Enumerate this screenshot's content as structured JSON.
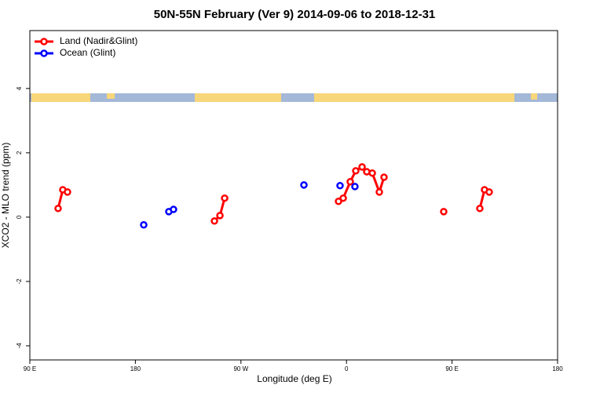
{
  "chart_data": {
    "type": "line",
    "title": "50N-55N February (Ver 9)   2014-09-06 to 2018-12-31",
    "x_label": "Longitude (deg E)",
    "y_label": "XCO2 - MLO trend (ppm)",
    "xlim": [
      90,
      540
    ],
    "ylim": [
      -4.44,
      5.8
    ],
    "xticks": [
      {
        "value": 90,
        "label": "90 E"
      },
      {
        "value": 180,
        "label": "180"
      },
      {
        "value": 270,
        "label": "90 W"
      },
      {
        "value": 360,
        "label": "0"
      },
      {
        "value": 450,
        "label": "90 E"
      },
      {
        "value": 540,
        "label": "180"
      }
    ],
    "yticks": [
      4,
      2,
      0,
      -2,
      -4
    ],
    "legend": "top-left",
    "series": [
      {
        "name": "Land (Nadir&Glint)",
        "color": "#ff0000",
        "x": [
          114.1,
          118.1,
          122.1,
          null,
          247.4,
          252.1,
          256.1,
          null,
          353.2,
          357.2,
          363.2,
          367.9,
          373.3,
          377.3,
          382.0,
          388.0,
          392.0,
          null,
          442.9,
          null,
          473.7,
          477.7,
          481.7
        ],
        "values": [
          0.27,
          0.85,
          0.78,
          null,
          -0.12,
          0.05,
          0.59,
          null,
          0.49,
          0.59,
          1.1,
          1.44,
          1.56,
          1.41,
          1.37,
          0.78,
          1.24,
          null,
          0.17,
          null,
          0.27,
          0.85,
          0.78
        ]
      },
      {
        "name": "Ocean (Glint)",
        "color": "#0000ff",
        "x": [
          187.1,
          null,
          208.5,
          212.5,
          null,
          323.7,
          null,
          354.5,
          null,
          367.2
        ],
        "values": [
          -0.24,
          null,
          0.17,
          0.24,
          null,
          1.0,
          null,
          0.98,
          null,
          0.95
        ]
      }
    ]
  }
}
